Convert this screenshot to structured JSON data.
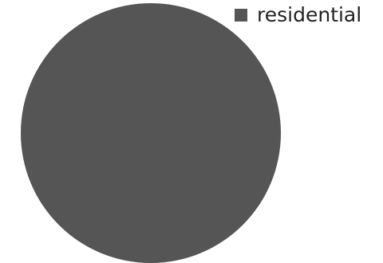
{
  "chart_data": {
    "type": "pie",
    "title": "",
    "legend_position": "top-right",
    "slices": [
      {
        "label": "residential",
        "value": 100,
        "color": "#555555"
      }
    ]
  }
}
